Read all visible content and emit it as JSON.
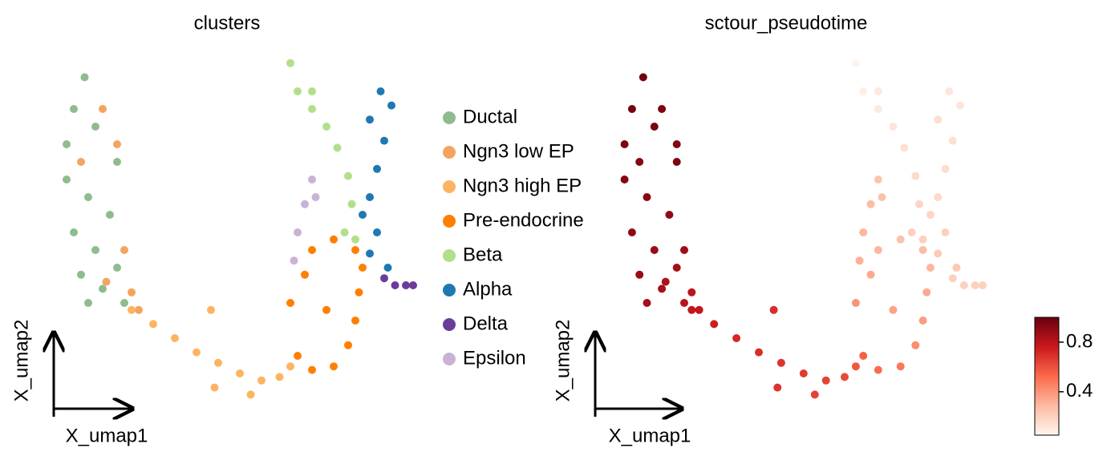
{
  "chart_data": [
    {
      "type": "scatter",
      "title": "clusters",
      "xlabel": "X_umap1",
      "ylabel": "X_umap2",
      "xlim": [
        0,
        100
      ],
      "ylim": [
        0,
        100
      ],
      "series": [
        {
          "name": "Ductal",
          "color": "#8fbc8f",
          "x": [
            9,
            6,
            4,
            12,
            18,
            4,
            10,
            16,
            6,
            12,
            18,
            8,
            14,
            20,
            10
          ],
          "y": [
            94,
            85,
            75,
            80,
            70,
            65,
            60,
            55,
            50,
            45,
            40,
            38,
            34,
            30,
            30
          ]
        },
        {
          "name": "Ngn3 low EP",
          "color": "#f4a460",
          "x": [
            14,
            18,
            8,
            20,
            15,
            22,
            24
          ],
          "y": [
            85,
            75,
            70,
            45,
            36,
            33,
            28
          ]
        },
        {
          "name": "Ngn3 high EP",
          "color": "#fdb462",
          "x": [
            22,
            28,
            34,
            40,
            46,
            52,
            58,
            63,
            66,
            45,
            55,
            44
          ],
          "y": [
            28,
            24,
            20,
            16,
            13,
            10,
            8,
            9,
            12,
            6,
            4,
            28
          ]
        },
        {
          "name": "Pre-endocrine",
          "color": "#ff7f00",
          "x": [
            68,
            72,
            78,
            82,
            84,
            85,
            86,
            84,
            78,
            72,
            70,
            66,
            76
          ],
          "y": [
            15,
            11,
            12,
            18,
            25,
            33,
            40,
            45,
            48,
            45,
            38,
            30,
            28
          ]
        },
        {
          "name": "Beta",
          "color": "#b2df8a",
          "x": [
            66,
            68,
            72,
            76,
            79,
            82,
            83,
            81,
            84,
            72
          ],
          "y": [
            98,
            90,
            85,
            80,
            74,
            66,
            58,
            50,
            48,
            90
          ]
        },
        {
          "name": "Alpha",
          "color": "#1f78b4",
          "x": [
            91,
            94,
            88,
            92,
            90,
            88,
            86,
            90,
            88,
            93
          ],
          "y": [
            90,
            86,
            82,
            76,
            68,
            60,
            55,
            50,
            44,
            40
          ]
        },
        {
          "name": "Delta",
          "color": "#6a3d9a",
          "x": [
            92,
            95,
            98,
            100
          ],
          "y": [
            37,
            35,
            35,
            35
          ]
        },
        {
          "name": "Epsilon",
          "color": "#cab2d6",
          "x": [
            72,
            70,
            68,
            67,
            73
          ],
          "y": [
            65,
            58,
            50,
            42,
            60
          ]
        }
      ]
    },
    {
      "type": "color_scatter",
      "title": "sctour_pseudotime",
      "xlabel": "X_umap1",
      "ylabel": "X_umap2",
      "xlim": [
        0,
        100
      ],
      "ylim": [
        0,
        100
      ],
      "colormap": "Reds",
      "clim": [
        0.05,
        1.0
      ],
      "cticks": [
        0.4,
        0.8
      ],
      "x": [
        9,
        6,
        4,
        12,
        18,
        4,
        10,
        16,
        6,
        12,
        18,
        8,
        14,
        20,
        10,
        14,
        18,
        8,
        20,
        15,
        22,
        24,
        22,
        28,
        34,
        40,
        46,
        52,
        58,
        63,
        66,
        45,
        55,
        44,
        68,
        72,
        78,
        82,
        84,
        85,
        86,
        84,
        78,
        72,
        70,
        66,
        76,
        66,
        68,
        72,
        76,
        79,
        82,
        83,
        81,
        84,
        72,
        91,
        94,
        88,
        92,
        90,
        88,
        86,
        90,
        88,
        93,
        92,
        95,
        98,
        100,
        72,
        70,
        68,
        67,
        73
      ],
      "y": [
        94,
        85,
        75,
        80,
        70,
        65,
        60,
        55,
        50,
        45,
        40,
        38,
        34,
        30,
        30,
        85,
        75,
        70,
        45,
        36,
        33,
        28,
        28,
        24,
        20,
        16,
        13,
        10,
        8,
        9,
        12,
        6,
        4,
        28,
        15,
        11,
        12,
        18,
        25,
        33,
        40,
        45,
        48,
        45,
        38,
        30,
        28,
        98,
        90,
        85,
        80,
        74,
        66,
        58,
        50,
        48,
        90,
        90,
        86,
        82,
        76,
        68,
        60,
        55,
        50,
        44,
        40,
        37,
        35,
        35,
        35,
        65,
        58,
        50,
        42,
        60
      ],
      "values": [
        0.98,
        0.97,
        0.95,
        0.96,
        0.95,
        0.93,
        0.92,
        0.9,
        0.9,
        0.88,
        0.85,
        0.88,
        0.85,
        0.8,
        0.85,
        0.95,
        0.93,
        0.93,
        0.87,
        0.83,
        0.8,
        0.78,
        0.78,
        0.75,
        0.72,
        0.7,
        0.68,
        0.66,
        0.64,
        0.62,
        0.58,
        0.68,
        0.64,
        0.7,
        0.55,
        0.52,
        0.48,
        0.42,
        0.38,
        0.34,
        0.3,
        0.28,
        0.26,
        0.3,
        0.34,
        0.4,
        0.36,
        0.06,
        0.08,
        0.1,
        0.12,
        0.14,
        0.16,
        0.18,
        0.2,
        0.2,
        0.1,
        0.12,
        0.12,
        0.14,
        0.14,
        0.15,
        0.16,
        0.18,
        0.2,
        0.22,
        0.24,
        0.2,
        0.2,
        0.2,
        0.2,
        0.25,
        0.28,
        0.3,
        0.32,
        0.26
      ]
    }
  ]
}
